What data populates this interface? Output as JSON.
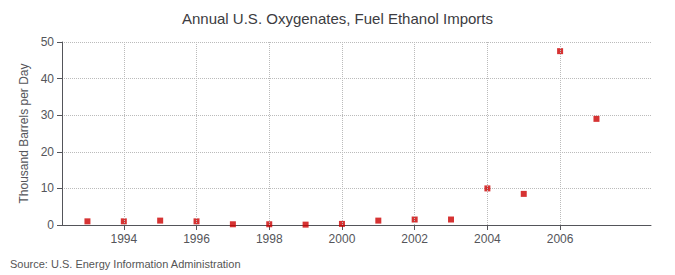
{
  "chart_data": {
    "type": "scatter",
    "title": "Annual U.S. Oxygenates, Fuel Ethanol Imports",
    "ylabel": "Thousand Barrels per Day",
    "annotation": "Source: U.S. Energy Information Administration",
    "x": [
      1993,
      1994,
      1995,
      1996,
      1997,
      1998,
      1999,
      2000,
      2001,
      2002,
      2003,
      2004,
      2005,
      2006,
      2007
    ],
    "values": [
      1.0,
      1.0,
      1.2,
      1.0,
      0.2,
      0.2,
      0.1,
      0.3,
      1.2,
      1.5,
      1.5,
      10.0,
      8.5,
      47.5,
      29.0
    ],
    "color": "#cc0000",
    "marker": "square",
    "xlim": [
      1992.3,
      2008.5
    ],
    "xticks": [
      1994,
      1996,
      1998,
      2000,
      2002,
      2004,
      2006
    ],
    "ylim": [
      0,
      50
    ],
    "yticks": [
      0,
      10,
      20,
      30,
      40,
      50
    ],
    "grid": true
  }
}
